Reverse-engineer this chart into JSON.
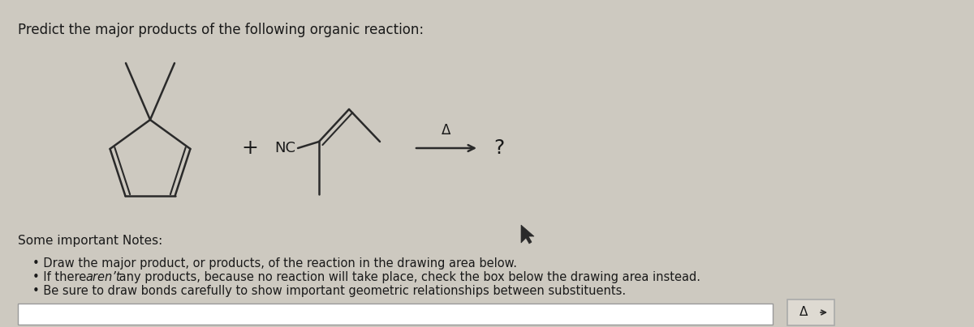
{
  "title": "Predict the major products of the following organic reaction:",
  "bg_color": "#cdc9c0",
  "line_color": "#2a2a2a",
  "text_color": "#1a1a1a",
  "title_fontsize": 12,
  "notes_fontsize": 11,
  "bullet_fontsize": 10.5,
  "bullet_notes": [
    "Draw the major product, or products, of the reaction in the drawing area below.",
    "If there aren’t any products, because no reaction will take place, check the box below the drawing area instead.",
    "Be sure to draw bonds carefully to show important geometric relationships between substituents."
  ]
}
